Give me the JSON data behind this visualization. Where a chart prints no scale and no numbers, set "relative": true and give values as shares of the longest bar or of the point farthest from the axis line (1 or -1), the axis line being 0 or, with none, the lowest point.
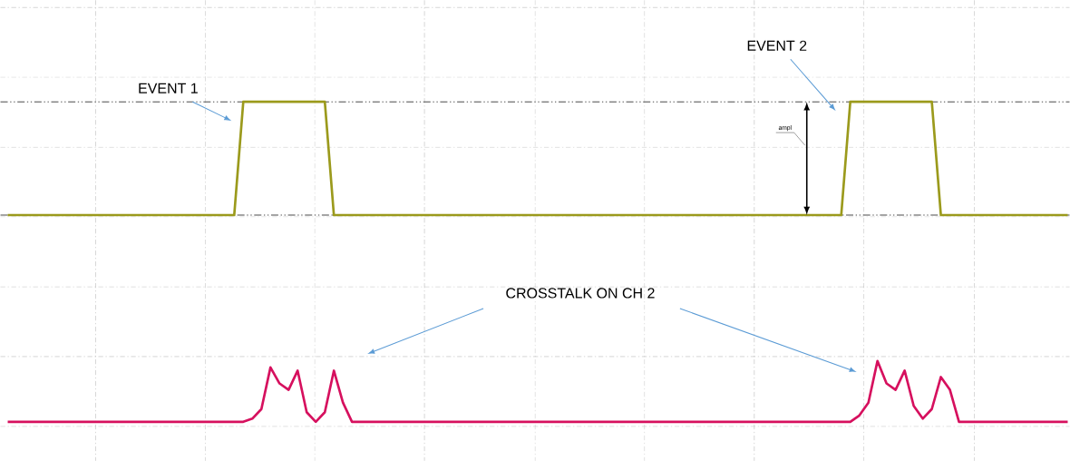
{
  "chart_data": {
    "type": "line",
    "relative": true,
    "grid": true,
    "categories": [
      null,
      null,
      null,
      null,
      null,
      null,
      null,
      null,
      null,
      null,
      null,
      null,
      null,
      null,
      null,
      null,
      null,
      null,
      null,
      null,
      null,
      null,
      null,
      null,
      null,
      null,
      null,
      null,
      null,
      null,
      null,
      null,
      null,
      null,
      null,
      null,
      null,
      null,
      null,
      null,
      null,
      null,
      null,
      null,
      null,
      null,
      null,
      null,
      null,
      null,
      null,
      null,
      null,
      null,
      null,
      null,
      null,
      null,
      null,
      null,
      null,
      null,
      null,
      null,
      null,
      null,
      null,
      null,
      null,
      null,
      null,
      null,
      null,
      null,
      null,
      null,
      null,
      null,
      null,
      null,
      null,
      null,
      null,
      null,
      null,
      null,
      null,
      null,
      null,
      null,
      null,
      null,
      null,
      null,
      null,
      null,
      null,
      null,
      null,
      null,
      null,
      null,
      null,
      null,
      null,
      null,
      null,
      null,
      null,
      null,
      null,
      null,
      null,
      null,
      null,
      null,
      null,
      null
    ],
    "series": [
      {
        "color": "#9b9a1c",
        "values": [
          0.646,
          0.646,
          0.646,
          0.646,
          0.646,
          0.646,
          0.646,
          0.646,
          0.646,
          0.646,
          0.646,
          0.646,
          0.646,
          0.646,
          0.646,
          0.646,
          0.646,
          0.646,
          0.646,
          0.646,
          0.646,
          0.646,
          0.646,
          0.646,
          0.646,
          0.646,
          1.0,
          1.0,
          1.0,
          1.0,
          1.0,
          1.0,
          1.0,
          1.0,
          1.0,
          1.0,
          0.646,
          0.646,
          0.646,
          0.646,
          0.646,
          0.646,
          0.646,
          0.646,
          0.646,
          0.646,
          0.646,
          0.646,
          0.646,
          0.646,
          0.646,
          0.646,
          0.646,
          0.646,
          0.646,
          0.646,
          0.646,
          0.646,
          0.646,
          0.646,
          0.646,
          0.646,
          0.646,
          0.646,
          0.646,
          0.646,
          0.646,
          0.646,
          0.646,
          0.646,
          0.646,
          0.646,
          0.646,
          0.646,
          0.646,
          0.646,
          0.646,
          0.646,
          0.646,
          0.646,
          0.646,
          0.646,
          0.646,
          0.646,
          0.646,
          0.646,
          0.646,
          0.646,
          0.646,
          0.646,
          0.646,
          0.646,
          0.646,
          1.0,
          1.0,
          1.0,
          1.0,
          1.0,
          1.0,
          1.0,
          1.0,
          1.0,
          1.0,
          0.646,
          0.646,
          0.646,
          0.646,
          0.646,
          0.646,
          0.646,
          0.646,
          0.646,
          0.646,
          0.646,
          0.646,
          0.646,
          0.646,
          0.646
        ]
      },
      {
        "color": "#d6105e",
        "values": [
          0,
          0,
          0,
          0,
          0,
          0,
          0,
          0,
          0,
          0,
          0,
          0,
          0,
          0,
          0,
          0,
          0,
          0,
          0,
          0,
          0,
          0,
          0,
          0,
          0,
          0,
          0,
          0.01,
          0.04,
          0.17,
          0.12,
          0.1,
          0.16,
          0.03,
          0,
          0.03,
          0.16,
          0.06,
          0,
          0,
          0,
          0,
          0,
          0,
          0,
          0,
          0,
          0,
          0,
          0,
          0,
          0,
          0,
          0,
          0,
          0,
          0,
          0,
          0,
          0,
          0,
          0,
          0,
          0,
          0,
          0,
          0,
          0,
          0,
          0,
          0,
          0,
          0,
          0,
          0,
          0,
          0,
          0,
          0,
          0,
          0,
          0,
          0,
          0,
          0,
          0,
          0,
          0,
          0,
          0,
          0,
          0,
          0,
          0,
          0.02,
          0.06,
          0.19,
          0.12,
          0.1,
          0.16,
          0.05,
          0.01,
          0.04,
          0.14,
          0.1,
          0,
          0,
          0,
          0,
          0,
          0,
          0,
          0,
          0,
          0,
          0,
          0,
          0
        ]
      }
    ],
    "ref_lines": [
      {
        "axis": "y",
        "value": 1.0
      },
      {
        "axis": "y",
        "value": 0.646
      }
    ],
    "annotations": [
      "EVENT 1",
      "EVENT 2",
      "CROSSTALK ON CH 2",
      "ampl"
    ]
  }
}
